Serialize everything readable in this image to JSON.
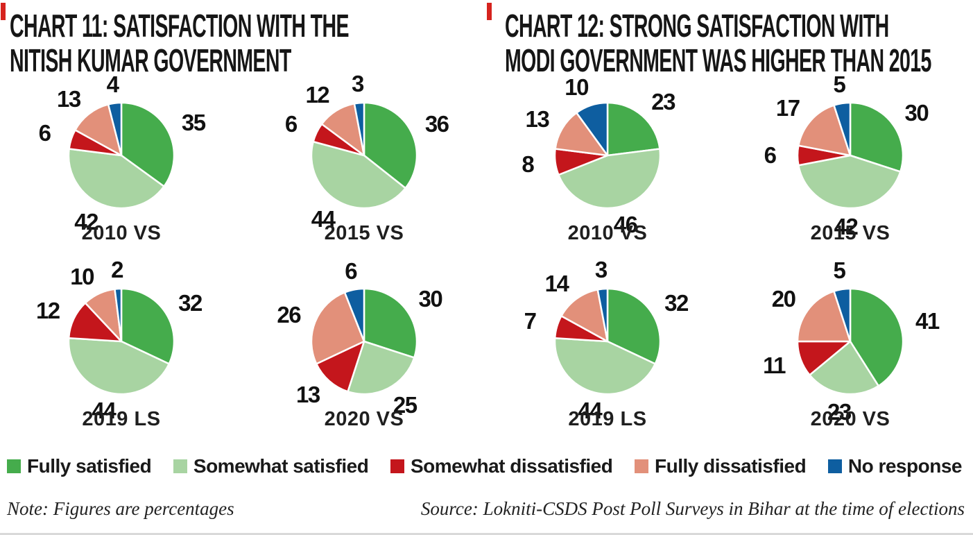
{
  "slice_colors": [
    "#45AC4C",
    "#A8D4A2",
    "#C4161C",
    "#E2907A",
    "#0E5EA0"
  ],
  "accent_color": "#D6231E",
  "charts": [
    {
      "title_line1": "CHART 11: SATISFACTION WITH THE",
      "title_line2": "NITISH KUMAR GOVERNMENT"
    },
    {
      "title_line1": "CHART 12: STRONG SATISFACTION WITH",
      "title_line2": "MODI GOVERNMENT WAS HIGHER THAN 2015"
    }
  ],
  "legend": [
    "Fully satisfied",
    "Somewhat satisfied",
    "Somewhat dissatisfied",
    "Fully dissatisfied",
    "No response"
  ],
  "footer": {
    "note": "Note: Figures are percentages",
    "source": "Source: Lokniti-CSDS Post Poll Surveys in Bihar at the time of elections"
  },
  "chart_data": [
    {
      "type": "pie",
      "title": "CHART 11: SATISFACTION WITH THE NITISH KUMAR GOVERNMENT",
      "categories": [
        "Fully satisfied",
        "Somewhat satisfied",
        "Somewhat dissatisfied",
        "Fully dissatisfied",
        "No response"
      ],
      "unit": "percent",
      "legend_position": "bottom",
      "series": [
        {
          "name": "2010 VS",
          "values": [
            35,
            42,
            6,
            13,
            4
          ]
        },
        {
          "name": "2015 VS",
          "values": [
            36,
            44,
            6,
            12,
            3
          ]
        },
        {
          "name": "2019 LS",
          "values": [
            32,
            44,
            12,
            10,
            2
          ]
        },
        {
          "name": "2020 VS",
          "values": [
            30,
            25,
            13,
            26,
            6
          ]
        }
      ]
    },
    {
      "type": "pie",
      "title": "CHART 12: STRONG SATISFACTION WITH MODI GOVERNMENT WAS HIGHER THAN 2015",
      "categories": [
        "Fully satisfied",
        "Somewhat satisfied",
        "Somewhat dissatisfied",
        "Fully dissatisfied",
        "No response"
      ],
      "unit": "percent",
      "legend_position": "bottom",
      "series": [
        {
          "name": "2010 VS",
          "values": [
            23,
            46,
            8,
            13,
            10
          ]
        },
        {
          "name": "2015 VS",
          "values": [
            30,
            42,
            6,
            17,
            5
          ]
        },
        {
          "name": "2019 LS",
          "values": [
            32,
            44,
            7,
            14,
            3
          ]
        },
        {
          "name": "2020 VS",
          "values": [
            41,
            23,
            11,
            20,
            5
          ]
        }
      ]
    }
  ]
}
